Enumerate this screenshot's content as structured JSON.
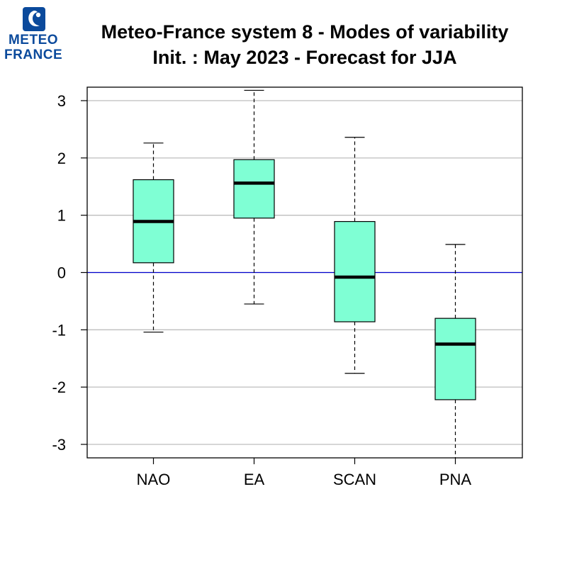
{
  "logo": {
    "line1": "METEO",
    "line2": "FRANCE",
    "color": "#0b4a9c"
  },
  "chart_data": {
    "type": "boxplot",
    "title": "Meteo-France system 8 - Modes of variability",
    "subtitle": "Init. : May 2023 - Forecast for JJA",
    "xlabel": "",
    "ylabel": "",
    "ylim": [
      -3.25,
      3.25
    ],
    "yticks": [
      -3,
      -2,
      -1,
      0,
      1,
      2,
      3
    ],
    "ytick_labels": [
      "-3",
      "-2",
      "-1",
      "0",
      "1",
      "2",
      "3"
    ],
    "grid": true,
    "zero_line": 0,
    "categories": [
      "NAO",
      "EA",
      "SCAN",
      "PNA"
    ],
    "boxes": [
      {
        "name": "NAO",
        "whisker_low": -1.04,
        "q1": 0.17,
        "median": 0.89,
        "q3": 1.62,
        "whisker_high": 2.26
      },
      {
        "name": "EA",
        "whisker_low": -0.55,
        "q1": 0.95,
        "median": 1.56,
        "q3": 1.97,
        "whisker_high": 3.18
      },
      {
        "name": "SCAN",
        "whisker_low": -1.76,
        "q1": -0.86,
        "median": -0.08,
        "q3": 0.89,
        "whisker_high": 2.36
      },
      {
        "name": "PNA",
        "whisker_low": -3.25,
        "q1": -2.22,
        "median": -1.25,
        "q3": -0.8,
        "whisker_high": 0.49
      }
    ],
    "colors": {
      "box_fill": "#7fffd4",
      "grid": "#bebebe",
      "zero_line": "#0000cd",
      "outline": "#000000"
    }
  }
}
